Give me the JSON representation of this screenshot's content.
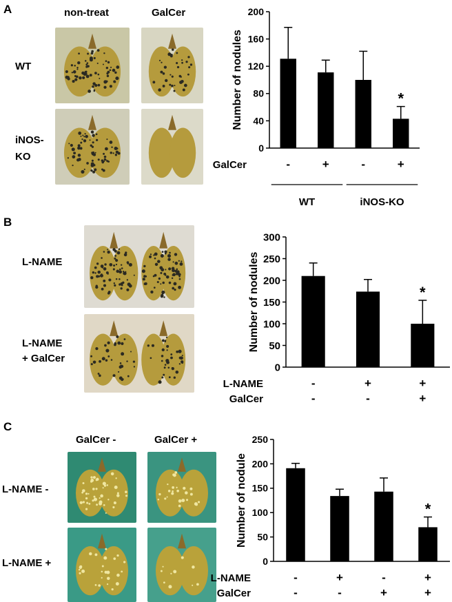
{
  "panels": [
    {
      "letter": "A",
      "col_labels": [
        "non-treat",
        "GalCer"
      ],
      "row_labels": [
        "WT",
        "iNOS-\nKO"
      ],
      "photos": [
        {
          "row": 0,
          "col": 0,
          "name": "wt-nontreat-lung-photo",
          "spots": "dense"
        },
        {
          "row": 0,
          "col": 1,
          "name": "wt-galcer-lung-photo",
          "spots": "medium"
        },
        {
          "row": 1,
          "col": 0,
          "name": "inoskO-nontreat-lung-photo",
          "spots": "dense"
        },
        {
          "row": 1,
          "col": 1,
          "name": "inoskO-galcer-lung-photo",
          "spots": "none"
        }
      ]
    },
    {
      "letter": "B",
      "row_labels": [
        "L-NAME",
        "L-NAME\n+ GalCer"
      ],
      "photos": [
        {
          "row": 0,
          "name": "lname-lung-photo",
          "spots": "dense"
        },
        {
          "row": 1,
          "name": "lname-galcer-lung-photo",
          "spots": "medium"
        }
      ]
    },
    {
      "letter": "C",
      "col_labels": [
        "GalCer -",
        "GalCer +"
      ],
      "row_labels": [
        "L-NAME -",
        "L-NAME +"
      ],
      "photos": [
        {
          "row": 0,
          "col": 0,
          "name": "lname-minus-galcer-minus-photo",
          "spots": "many"
        },
        {
          "row": 0,
          "col": 1,
          "name": "lname-minus-galcer-plus-photo",
          "spots": "some"
        },
        {
          "row": 1,
          "col": 0,
          "name": "lname-plus-galcer-minus-photo",
          "spots": "some"
        },
        {
          "row": 1,
          "col": 1,
          "name": "lname-plus-galcer-plus-photo",
          "spots": "few"
        }
      ]
    }
  ],
  "chart_data": [
    {
      "type": "bar",
      "ylabel": "Number of nodules",
      "ylim": [
        0,
        200
      ],
      "yticks": [
        0,
        40,
        80,
        120,
        160,
        200
      ],
      "values": [
        131,
        111,
        100,
        43
      ],
      "errors": [
        46,
        18,
        42,
        18
      ],
      "significance": [
        "",
        "",
        "",
        "*"
      ],
      "conditions": [
        {
          "label": "GalCer",
          "values": [
            "-",
            "+",
            "-",
            "+"
          ]
        }
      ],
      "groups": [
        {
          "label": "WT",
          "span": [
            0,
            1
          ]
        },
        {
          "label": "iNOS-KO",
          "span": [
            2,
            3
          ]
        }
      ],
      "bar_color": "#000000"
    },
    {
      "type": "bar",
      "ylabel": "Number of nodules",
      "ylim": [
        0,
        300
      ],
      "yticks": [
        0,
        50,
        100,
        150,
        200,
        250,
        300
      ],
      "values": [
        210,
        174,
        100
      ],
      "errors": [
        30,
        28,
        54
      ],
      "significance": [
        "",
        "",
        "*"
      ],
      "conditions": [
        {
          "label": "L-NAME",
          "values": [
            "-",
            "+",
            "+"
          ]
        },
        {
          "label": "GalCer",
          "values": [
            "-",
            "-",
            "+"
          ]
        }
      ],
      "groups": [],
      "bar_color": "#000000"
    },
    {
      "type": "bar",
      "ylabel": "Number of nodule",
      "ylim": [
        0,
        250
      ],
      "yticks": [
        0,
        50,
        100,
        150,
        200,
        250
      ],
      "values": [
        191,
        134,
        143,
        70
      ],
      "errors": [
        10,
        14,
        28,
        21
      ],
      "significance": [
        "",
        "",
        "",
        "*"
      ],
      "conditions": [
        {
          "label": "L-NAME",
          "values": [
            "-",
            "+",
            "-",
            "+"
          ]
        },
        {
          "label": "GalCer",
          "values": [
            "-",
            "-",
            "+",
            "+"
          ]
        }
      ],
      "groups": [],
      "bar_color": "#000000"
    }
  ]
}
